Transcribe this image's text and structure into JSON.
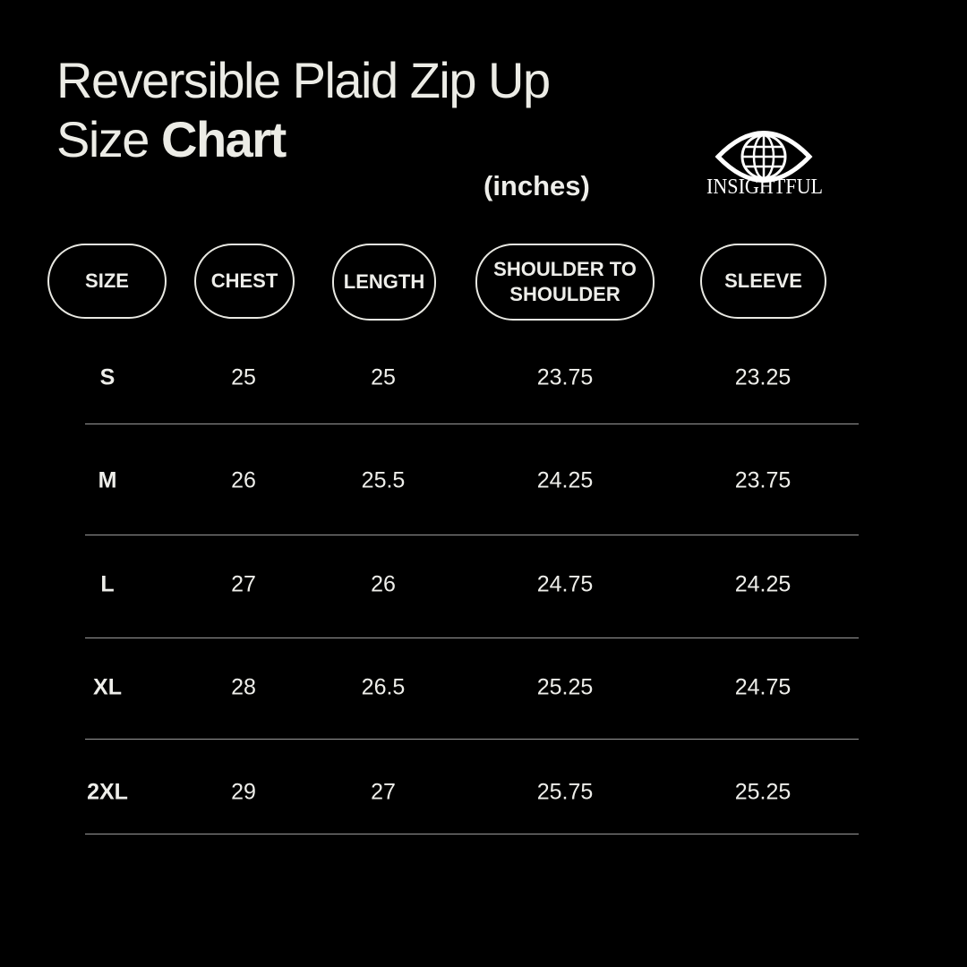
{
  "header": {
    "title_line1": "Reversible Plaid Zip Up",
    "title_line2_regular": "Size",
    "title_line2_bold": "Chart",
    "units": "(inches)",
    "logo": "INSIGHTFUL"
  },
  "table": {
    "columns": [
      "SIZE",
      "CHEST",
      "LENGTH",
      "SHOULDER TO SHOULDER",
      "SLEEVE"
    ],
    "rows": [
      [
        "S",
        "25",
        "25",
        "23.75",
        "23.25"
      ],
      [
        "M",
        "26",
        "25.5",
        "24.25",
        "23.75"
      ],
      [
        "L",
        "27",
        "26",
        "24.75",
        "24.25"
      ],
      [
        "XL",
        "28",
        "26.5",
        "25.25",
        "24.75"
      ],
      [
        "2XL",
        "29",
        "27",
        "25.75",
        "25.25"
      ]
    ]
  }
}
